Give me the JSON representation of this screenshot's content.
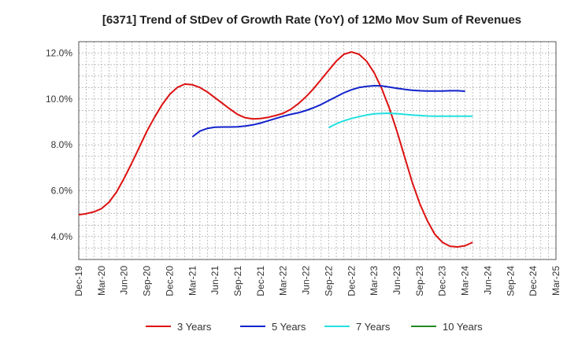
{
  "chart_data": {
    "type": "line",
    "title": "[6371]  Trend of StDev of Growth Rate (YoY) of 12Mo Mov Sum of Revenues",
    "xlabel": "",
    "ylabel": "",
    "ylim": [
      3.0,
      12.5
    ],
    "yticks": [
      4.0,
      6.0,
      8.0,
      10.0,
      12.0
    ],
    "ytick_labels": [
      "4.0%",
      "6.0%",
      "8.0%",
      "10.0%",
      "12.0%"
    ],
    "x_tick_labels": [
      "Dec-19",
      "Mar-20",
      "Jun-20",
      "Sep-20",
      "Dec-20",
      "Mar-21",
      "Jun-21",
      "Sep-21",
      "Dec-21",
      "Mar-22",
      "Jun-22",
      "Sep-22",
      "Dec-22",
      "Mar-23",
      "Jun-23",
      "Sep-23",
      "Dec-23",
      "Mar-24",
      "Jun-24",
      "Sep-24",
      "Dec-24",
      "Mar-25"
    ],
    "grid": true,
    "legend_position": "bottom",
    "series": [
      {
        "name": "3 Years",
        "color": "#dd1111",
        "points": [
          [
            0,
            4.95
          ],
          [
            1,
            5.0
          ],
          [
            2,
            5.08
          ],
          [
            3,
            5.22
          ],
          [
            4,
            5.5
          ],
          [
            5,
            5.95
          ],
          [
            6,
            6.55
          ],
          [
            7,
            7.2
          ],
          [
            8,
            7.9
          ],
          [
            9,
            8.6
          ],
          [
            10,
            9.2
          ],
          [
            11,
            9.75
          ],
          [
            12,
            10.2
          ],
          [
            13,
            10.5
          ],
          [
            14,
            10.65
          ],
          [
            15,
            10.62
          ],
          [
            16,
            10.5
          ],
          [
            17,
            10.3
          ],
          [
            18,
            10.05
          ],
          [
            19,
            9.8
          ],
          [
            20,
            9.55
          ],
          [
            21,
            9.32
          ],
          [
            22,
            9.18
          ],
          [
            23,
            9.13
          ],
          [
            24,
            9.15
          ],
          [
            25,
            9.2
          ],
          [
            26,
            9.28
          ],
          [
            27,
            9.38
          ],
          [
            28,
            9.55
          ],
          [
            29,
            9.8
          ],
          [
            30,
            10.1
          ],
          [
            31,
            10.45
          ],
          [
            32,
            10.85
          ],
          [
            33,
            11.25
          ],
          [
            34,
            11.65
          ],
          [
            35,
            11.95
          ],
          [
            36,
            12.05
          ],
          [
            37,
            11.95
          ],
          [
            38,
            11.65
          ],
          [
            39,
            11.15
          ],
          [
            40,
            10.45
          ],
          [
            41,
            9.6
          ],
          [
            42,
            8.6
          ],
          [
            43,
            7.5
          ],
          [
            44,
            6.4
          ],
          [
            45,
            5.45
          ],
          [
            46,
            4.7
          ],
          [
            47,
            4.1
          ],
          [
            48,
            3.75
          ],
          [
            49,
            3.58
          ],
          [
            50,
            3.55
          ],
          [
            51,
            3.6
          ],
          [
            52,
            3.75
          ]
        ]
      },
      {
        "name": "5 Years",
        "color": "#1122cc",
        "points": [
          [
            15,
            8.35
          ],
          [
            16,
            8.6
          ],
          [
            17,
            8.72
          ],
          [
            18,
            8.77
          ],
          [
            19,
            8.78
          ],
          [
            20,
            8.78
          ],
          [
            21,
            8.79
          ],
          [
            22,
            8.82
          ],
          [
            23,
            8.87
          ],
          [
            24,
            8.95
          ],
          [
            25,
            9.05
          ],
          [
            26,
            9.15
          ],
          [
            27,
            9.25
          ],
          [
            28,
            9.33
          ],
          [
            29,
            9.4
          ],
          [
            30,
            9.5
          ],
          [
            31,
            9.62
          ],
          [
            32,
            9.76
          ],
          [
            33,
            9.93
          ],
          [
            34,
            10.1
          ],
          [
            35,
            10.27
          ],
          [
            36,
            10.4
          ],
          [
            37,
            10.5
          ],
          [
            38,
            10.55
          ],
          [
            39,
            10.58
          ],
          [
            40,
            10.57
          ],
          [
            41,
            10.52
          ],
          [
            42,
            10.47
          ],
          [
            43,
            10.42
          ],
          [
            44,
            10.38
          ],
          [
            45,
            10.36
          ],
          [
            46,
            10.35
          ],
          [
            47,
            10.35
          ],
          [
            48,
            10.35
          ],
          [
            49,
            10.36
          ],
          [
            50,
            10.36
          ],
          [
            51,
            10.34
          ]
        ]
      },
      {
        "name": "7 Years",
        "color": "#22e0e0",
        "points": [
          [
            33,
            8.75
          ],
          [
            34,
            8.92
          ],
          [
            35,
            9.05
          ],
          [
            36,
            9.15
          ],
          [
            37,
            9.23
          ],
          [
            38,
            9.3
          ],
          [
            39,
            9.35
          ],
          [
            40,
            9.37
          ],
          [
            41,
            9.38
          ],
          [
            42,
            9.36
          ],
          [
            43,
            9.33
          ],
          [
            44,
            9.3
          ],
          [
            45,
            9.28
          ],
          [
            46,
            9.26
          ],
          [
            47,
            9.25
          ],
          [
            48,
            9.25
          ],
          [
            49,
            9.25
          ],
          [
            50,
            9.25
          ],
          [
            51,
            9.25
          ],
          [
            52,
            9.25
          ]
        ]
      },
      {
        "name": "10 Years",
        "color": "#228822",
        "points": []
      }
    ]
  }
}
